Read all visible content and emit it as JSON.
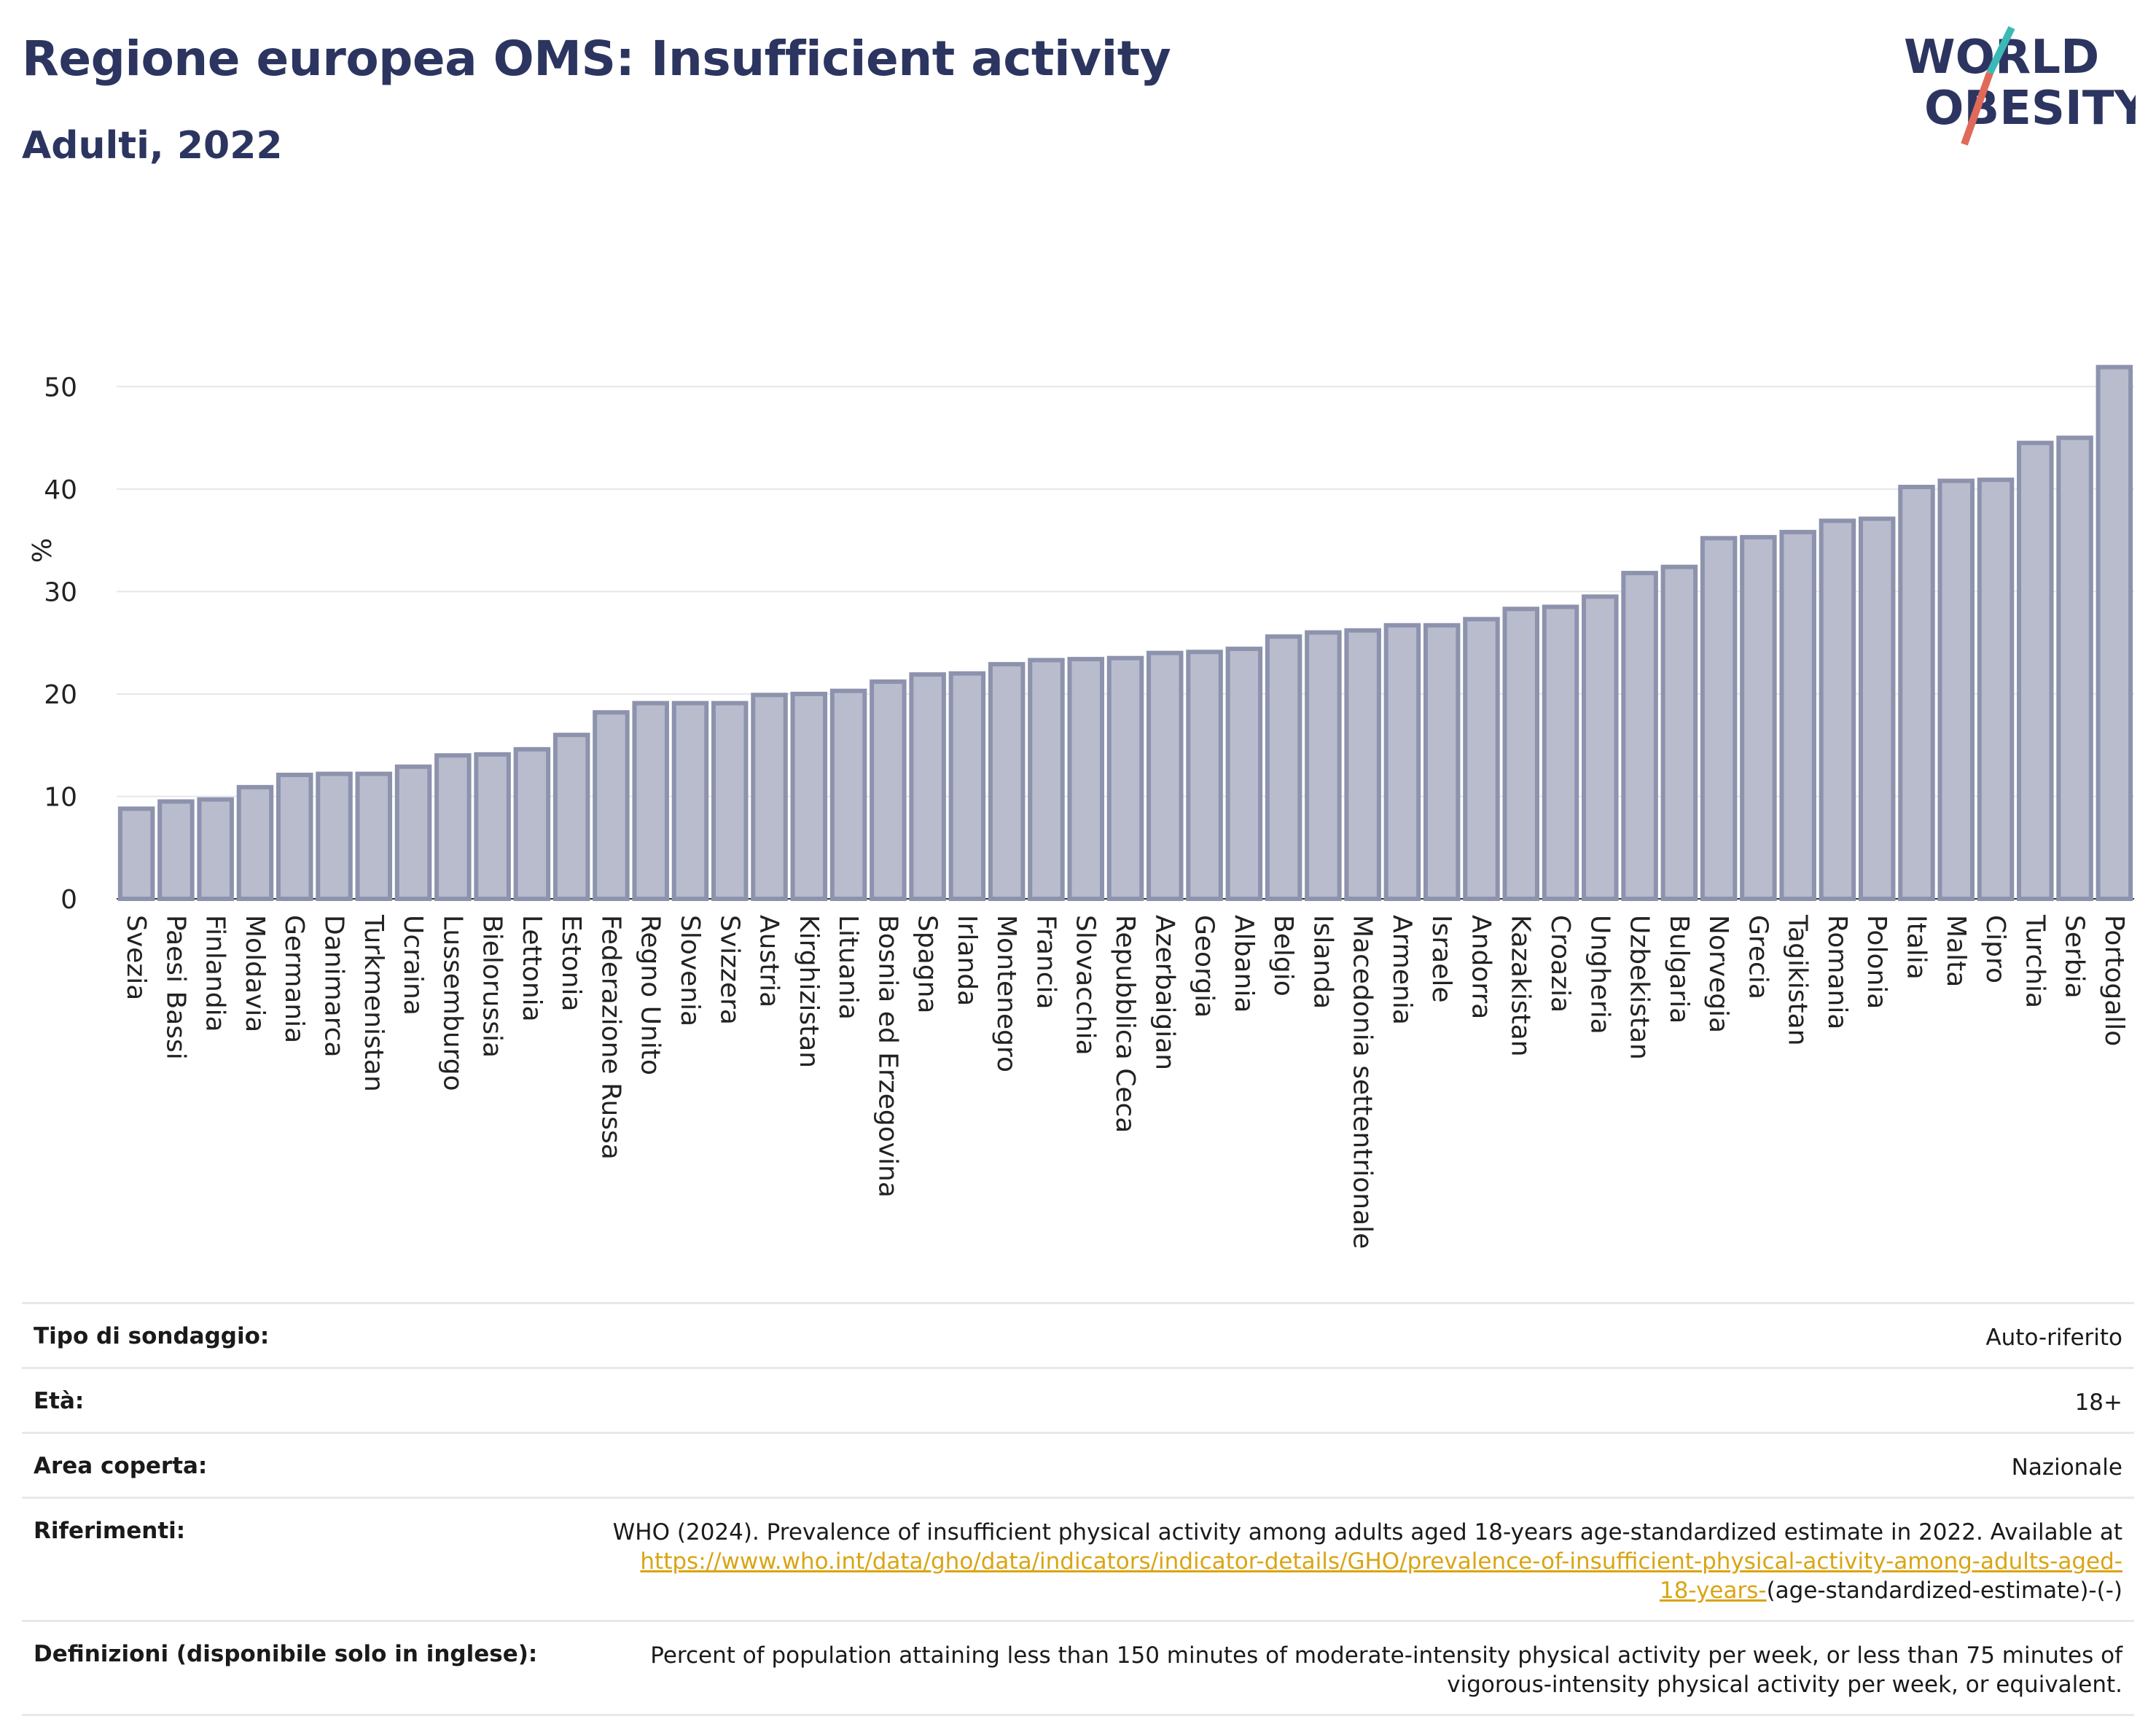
{
  "title": "Regione europea OMS: Insufficient activity",
  "subtitle": "Adulti, 2022",
  "logo": {
    "line1": "WORLD",
    "line2": "OBESITY",
    "icon": "world-obesity-logo"
  },
  "colors": {
    "title": "#2c3560",
    "bar_fill": "#b9bccd",
    "bar_stroke": "#8d92ad",
    "link": "#d9a514"
  },
  "chart_data": {
    "type": "bar",
    "title": "Regione europea OMS: Insufficient activity",
    "ylabel": "%",
    "xlabel": "",
    "ylim": [
      0,
      55
    ],
    "yticks": [
      0,
      10,
      20,
      30,
      40,
      50
    ],
    "grid": true,
    "categories": [
      "Svezia",
      "Paesi Bassi",
      "Finlandia",
      "Moldavia",
      "Germania",
      "Danimarca",
      "Turkmenistan",
      "Ucraina",
      "Lussemburgo",
      "Bielorussia",
      "Lettonia",
      "Estonia",
      "Federazione Russa",
      "Regno Unito",
      "Slovenia",
      "Svizzera",
      "Austria",
      "Kirghizistan",
      "Lituania",
      "Bosnia ed Erzegovina",
      "Spagna",
      "Irlanda",
      "Montenegro",
      "Francia",
      "Slovacchia",
      "Repubblica Ceca",
      "Azerbaigian",
      "Georgia",
      "Albania",
      "Belgio",
      "Islanda",
      "Macedonia settentrionale",
      "Armenia",
      "Israele",
      "Andorra",
      "Kazakistan",
      "Croazia",
      "Ungheria",
      "Uzbekistan",
      "Bulgaria",
      "Norvegia",
      "Grecia",
      "Tagikistan",
      "Romania",
      "Polonia",
      "Italia",
      "Malta",
      "Cipro",
      "Turchia",
      "Serbia",
      "Portogallo"
    ],
    "values": [
      8.8,
      9.5,
      9.7,
      10.9,
      12.1,
      12.2,
      12.2,
      12.9,
      14.0,
      14.1,
      14.6,
      16.0,
      18.2,
      19.1,
      19.1,
      19.1,
      19.9,
      20.0,
      20.3,
      21.2,
      21.9,
      22.0,
      22.9,
      23.3,
      23.4,
      23.5,
      24.0,
      24.1,
      24.4,
      25.6,
      26.0,
      26.2,
      26.7,
      26.7,
      27.3,
      28.3,
      28.5,
      29.5,
      31.8,
      32.4,
      35.2,
      35.3,
      35.8,
      36.9,
      37.1,
      40.2,
      40.8,
      40.9,
      44.5,
      45.0,
      51.9
    ]
  },
  "info": {
    "survey_label": "Tipo di sondaggio:",
    "survey_value": "Auto-riferito",
    "age_label": "Età:",
    "age_value": "18+",
    "area_label": "Area coperta:",
    "area_value": "Nazionale",
    "ref_label": "Riferimenti:",
    "ref_text": "WHO (2024). Prevalence of insufficient physical activity among adults aged 18-years age-standardized estimate in 2022. Available at",
    "ref_link_a": "https://www.who.int/data/gho/data/indicators/indicator-details/GHO/prevalence-of-insufficient-physical-activity-among-adults-aged-",
    "ref_link_b": "18-years-",
    "ref_tail": "(age-standardized-estimate)-(-)",
    "def_label": "Definizioni (disponibile solo in inglese):",
    "def_line1": "Percent of population attaining less than 150 minutes of moderate-intensity physical activity per week, or less than 75 minutes of",
    "def_line2": "vigorous-intensity physical activity per week, or equivalent."
  }
}
